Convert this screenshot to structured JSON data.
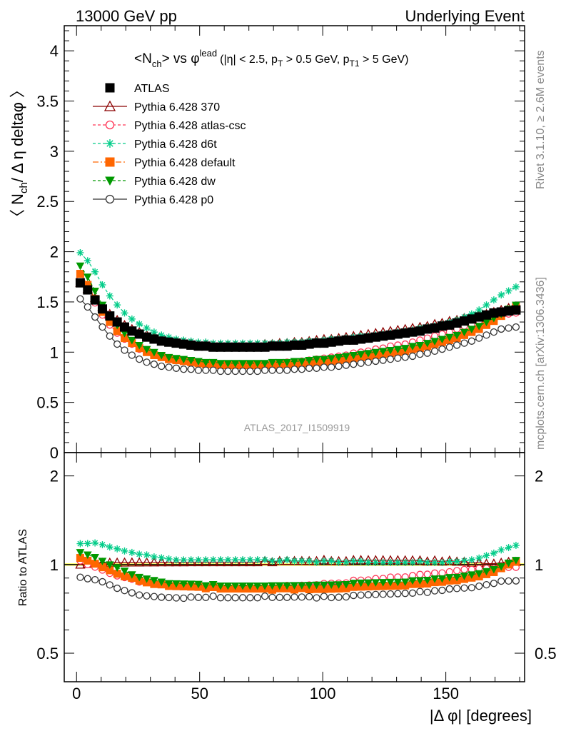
{
  "header": {
    "left": "13000 GeV pp",
    "right": "Underlying Event"
  },
  "side_labels": {
    "rivet": "Rivet 3.1.10, ≥ 2.6M events",
    "mcplots": "mcplots.cern.ch [arXiv:1306.3436]"
  },
  "watermark": "ATLAS_2017_I1509919",
  "title": {
    "nch": "<N",
    "nch_sub": "ch",
    "vs": "> vs φ",
    "vs_sup": "lead",
    "cuts_a": "(|η| < 2.5, p",
    "cuts_sub1": "T",
    "cuts_b": " > 0.5 GeV, p",
    "cuts_sub2": "T1",
    "cuts_c": " > 5 GeV)"
  },
  "ylabel_main": {
    "a": "〈 N",
    "sub": "ch",
    "b": "/ Δ η deltaφ 〉"
  },
  "ylabel_ratio": "Ratio to ATLAS",
  "xlabel": "|Δ φ| [degrees]",
  "chart_data": {
    "type": "scatter",
    "x": [
      1.5,
      4.5,
      7.5,
      10.5,
      13.5,
      16.5,
      19.5,
      22.5,
      25.5,
      28.5,
      31.5,
      34.5,
      37.5,
      40.5,
      43.5,
      46.5,
      49.5,
      52.5,
      55.5,
      58.5,
      61.5,
      64.5,
      67.5,
      70.5,
      73.5,
      76.5,
      79.5,
      82.5,
      85.5,
      88.5,
      91.5,
      94.5,
      97.5,
      100.5,
      103.5,
      106.5,
      109.5,
      112.5,
      115.5,
      118.5,
      121.5,
      124.5,
      127.5,
      130.5,
      133.5,
      136.5,
      139.5,
      142.5,
      145.5,
      148.5,
      151.5,
      154.5,
      157.5,
      160.5,
      163.5,
      166.5,
      169.5,
      172.5,
      175.5,
      178.5
    ],
    "main": {
      "xlim": [
        -5,
        182
      ],
      "ylim": [
        0,
        4.25
      ],
      "xticks": [
        0,
        50,
        100,
        150
      ],
      "yticks": [
        0,
        0.5,
        1,
        1.5,
        2,
        2.5,
        3,
        3.5,
        4
      ],
      "yticklabels": [
        "0",
        "0.5",
        "1",
        "1.5",
        "2",
        "2.5",
        "3",
        "3.5",
        "4"
      ]
    },
    "ratio": {
      "ylim": [
        0.4,
        2.4
      ],
      "log": true,
      "yticks": [
        0.5,
        1,
        2
      ],
      "yticklabels": [
        "0.5",
        "1",
        "2"
      ]
    },
    "ref_band_color": "#ffff66",
    "series": [
      {
        "name": "ATLAS",
        "color": "#000000",
        "marker": "square",
        "line": "none",
        "values": [
          1.69,
          1.62,
          1.52,
          1.43,
          1.36,
          1.3,
          1.25,
          1.21,
          1.18,
          1.15,
          1.13,
          1.11,
          1.1,
          1.09,
          1.08,
          1.07,
          1.06,
          1.06,
          1.05,
          1.05,
          1.05,
          1.05,
          1.05,
          1.05,
          1.05,
          1.05,
          1.06,
          1.06,
          1.06,
          1.07,
          1.07,
          1.08,
          1.09,
          1.09,
          1.1,
          1.11,
          1.12,
          1.12,
          1.13,
          1.14,
          1.15,
          1.16,
          1.17,
          1.18,
          1.19,
          1.2,
          1.21,
          1.23,
          1.24,
          1.26,
          1.27,
          1.29,
          1.31,
          1.33,
          1.35,
          1.37,
          1.39,
          1.4,
          1.41,
          1.42
        ]
      },
      {
        "name": "Pythia 6.428 370",
        "color": "#8b0000",
        "marker": "triangle-open",
        "line": "solid",
        "values": [
          1.69,
          1.63,
          1.54,
          1.45,
          1.38,
          1.32,
          1.27,
          1.23,
          1.2,
          1.17,
          1.15,
          1.13,
          1.12,
          1.11,
          1.1,
          1.09,
          1.08,
          1.08,
          1.07,
          1.07,
          1.07,
          1.07,
          1.07,
          1.07,
          1.07,
          1.08,
          1.08,
          1.09,
          1.09,
          1.1,
          1.1,
          1.11,
          1.12,
          1.13,
          1.13,
          1.14,
          1.15,
          1.16,
          1.17,
          1.18,
          1.19,
          1.2,
          1.21,
          1.22,
          1.23,
          1.24,
          1.25,
          1.26,
          1.28,
          1.29,
          1.31,
          1.32,
          1.34,
          1.35,
          1.37,
          1.38,
          1.4,
          1.42,
          1.44,
          1.45
        ]
      },
      {
        "name": "Pythia 6.428 atlas-csc",
        "color": "#ff3355",
        "marker": "circle-open",
        "line": "dashed",
        "values": [
          1.74,
          1.62,
          1.49,
          1.37,
          1.27,
          1.19,
          1.13,
          1.08,
          1.03,
          1.0,
          0.97,
          0.95,
          0.93,
          0.92,
          0.91,
          0.9,
          0.89,
          0.89,
          0.88,
          0.88,
          0.88,
          0.88,
          0.88,
          0.88,
          0.88,
          0.88,
          0.89,
          0.89,
          0.9,
          0.9,
          0.91,
          0.92,
          0.93,
          0.94,
          0.95,
          0.96,
          0.97,
          0.99,
          1.0,
          1.01,
          1.03,
          1.04,
          1.06,
          1.07,
          1.08,
          1.1,
          1.12,
          1.14,
          1.16,
          1.18,
          1.2,
          1.23,
          1.26,
          1.28,
          1.31,
          1.33,
          1.35,
          1.37,
          1.38,
          1.39
        ]
      },
      {
        "name": "Pythia 6.428 d6t",
        "color": "#00cc88",
        "marker": "star",
        "line": "dashed",
        "values": [
          1.99,
          1.91,
          1.8,
          1.67,
          1.56,
          1.47,
          1.39,
          1.33,
          1.28,
          1.24,
          1.2,
          1.17,
          1.15,
          1.13,
          1.12,
          1.11,
          1.1,
          1.1,
          1.09,
          1.09,
          1.09,
          1.09,
          1.09,
          1.09,
          1.09,
          1.09,
          1.09,
          1.09,
          1.1,
          1.1,
          1.1,
          1.11,
          1.11,
          1.12,
          1.13,
          1.13,
          1.14,
          1.15,
          1.16,
          1.16,
          1.17,
          1.18,
          1.19,
          1.2,
          1.21,
          1.22,
          1.24,
          1.25,
          1.26,
          1.28,
          1.3,
          1.32,
          1.35,
          1.38,
          1.42,
          1.47,
          1.52,
          1.57,
          1.61,
          1.65
        ]
      },
      {
        "name": "Pythia 6.428 default",
        "color": "#ff6600",
        "marker": "square",
        "line": "dashdot",
        "values": [
          1.78,
          1.67,
          1.53,
          1.4,
          1.3,
          1.21,
          1.14,
          1.09,
          1.04,
          1.0,
          0.97,
          0.95,
          0.93,
          0.92,
          0.91,
          0.9,
          0.89,
          0.88,
          0.88,
          0.87,
          0.87,
          0.87,
          0.87,
          0.87,
          0.87,
          0.87,
          0.87,
          0.88,
          0.88,
          0.88,
          0.89,
          0.89,
          0.9,
          0.9,
          0.91,
          0.92,
          0.93,
          0.94,
          0.95,
          0.96,
          0.97,
          0.98,
          0.99,
          1.0,
          1.01,
          1.03,
          1.04,
          1.06,
          1.08,
          1.1,
          1.12,
          1.14,
          1.17,
          1.2,
          1.23,
          1.27,
          1.31,
          1.36,
          1.41,
          1.45
        ]
      },
      {
        "name": "Pythia 6.428 dw",
        "color": "#009900",
        "marker": "triangle-down",
        "line": "dashed",
        "values": [
          1.86,
          1.75,
          1.61,
          1.47,
          1.36,
          1.27,
          1.19,
          1.12,
          1.07,
          1.03,
          1.0,
          0.97,
          0.95,
          0.94,
          0.93,
          0.92,
          0.91,
          0.9,
          0.9,
          0.89,
          0.89,
          0.89,
          0.89,
          0.89,
          0.89,
          0.89,
          0.9,
          0.9,
          0.9,
          0.91,
          0.91,
          0.92,
          0.93,
          0.93,
          0.94,
          0.95,
          0.96,
          0.97,
          0.98,
          0.99,
          1.0,
          1.01,
          1.02,
          1.03,
          1.04,
          1.06,
          1.07,
          1.09,
          1.11,
          1.13,
          1.15,
          1.17,
          1.2,
          1.23,
          1.26,
          1.3,
          1.34,
          1.38,
          1.43,
          1.47
        ]
      },
      {
        "name": "Pythia 6.428 p0",
        "color": "#333333",
        "marker": "circle-open",
        "line": "solid",
        "values": [
          1.53,
          1.45,
          1.35,
          1.25,
          1.16,
          1.08,
          1.02,
          0.97,
          0.93,
          0.9,
          0.88,
          0.86,
          0.85,
          0.84,
          0.83,
          0.83,
          0.82,
          0.82,
          0.82,
          0.81,
          0.81,
          0.81,
          0.81,
          0.81,
          0.81,
          0.82,
          0.82,
          0.82,
          0.82,
          0.83,
          0.83,
          0.84,
          0.84,
          0.85,
          0.85,
          0.86,
          0.87,
          0.88,
          0.89,
          0.9,
          0.91,
          0.92,
          0.93,
          0.94,
          0.95,
          0.96,
          0.98,
          0.99,
          1.01,
          1.03,
          1.05,
          1.07,
          1.09,
          1.11,
          1.14,
          1.17,
          1.2,
          1.23,
          1.24,
          1.25
        ]
      }
    ]
  }
}
